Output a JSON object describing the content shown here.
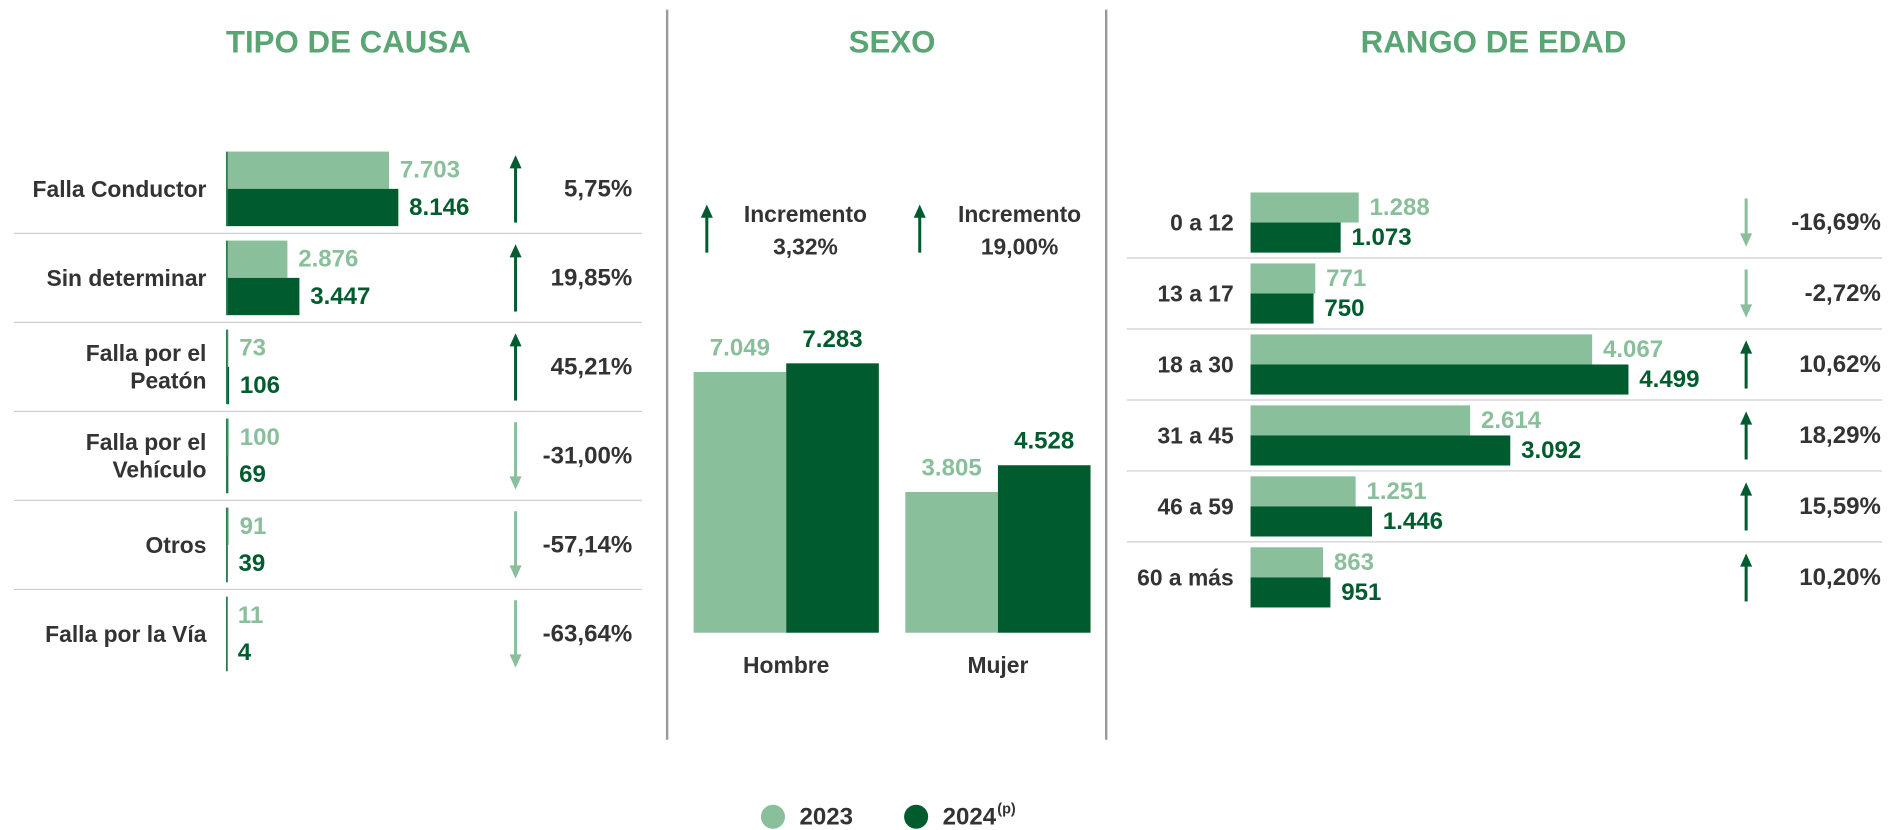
{
  "chart_data": [
    {
      "type": "bar",
      "orientation": "horizontal",
      "title": "TIPO DE CAUSA",
      "categories": [
        "Falla Conductor",
        "Sin determinar",
        "Falla por el\nPeatón",
        "Falla por el\nVehículo",
        "Otros",
        "Falla por la Vía"
      ],
      "series": [
        {
          "name": "2023",
          "color": "#8abf9c",
          "values": [
            7703,
            2876,
            73,
            100,
            91,
            11
          ],
          "value_labels": [
            "7.703",
            "2.876",
            "73",
            "100",
            "91",
            "11"
          ]
        },
        {
          "name": "2024",
          "name_note": "(p)",
          "color": "#005c2e",
          "values": [
            8146,
            3447,
            106,
            69,
            39,
            4
          ],
          "value_labels": [
            "8.146",
            "3.447",
            "106",
            "69",
            "39",
            "4"
          ]
        }
      ],
      "change_values": [
        5.75,
        19.85,
        45.21,
        -31.0,
        -57.14,
        -63.64
      ],
      "change_labels": [
        "5,75%",
        "19,85%",
        "45,21%",
        "-31,00%",
        "-57,14%",
        "-63,64%"
      ],
      "xlim": [
        0,
        10000
      ]
    },
    {
      "type": "bar",
      "orientation": "vertical",
      "title": "SEXO",
      "categories": [
        "Hombre",
        "Mujer"
      ],
      "series": [
        {
          "name": "2023",
          "color": "#8abf9c",
          "values": [
            7049,
            3805
          ],
          "value_labels": [
            "7.049",
            "3.805"
          ]
        },
        {
          "name": "2024",
          "name_note": "(p)",
          "color": "#005c2e",
          "values": [
            7283,
            4528
          ],
          "value_labels": [
            "7.283",
            "4.528"
          ]
        }
      ],
      "annotation": "Incremento",
      "change_values": [
        3.32,
        19.0
      ],
      "change_labels": [
        "3,32%",
        "19,00%"
      ],
      "ylim": [
        0,
        8000
      ]
    },
    {
      "type": "bar",
      "orientation": "horizontal",
      "title": "RANGO DE EDAD",
      "categories": [
        "0 a 12",
        "13 a 17",
        "18 a 30",
        "31 a 45",
        "46 a 59",
        "60 a más"
      ],
      "series": [
        {
          "name": "2023",
          "color": "#8abf9c",
          "values": [
            1288,
            771,
            4067,
            2614,
            1251,
            863
          ],
          "value_labels": [
            "1.288",
            "771",
            "4.067",
            "2.614",
            "1.251",
            "863"
          ]
        },
        {
          "name": "2024",
          "name_note": "(p)",
          "color": "#005c2e",
          "values": [
            1073,
            750,
            4499,
            3092,
            1446,
            951
          ],
          "value_labels": [
            "1.073",
            "750",
            "4.499",
            "3.092",
            "1.446",
            "951"
          ]
        }
      ],
      "change_values": [
        -16.69,
        -2.72,
        10.62,
        18.29,
        15.59,
        10.2
      ],
      "change_labels": [
        "-16,69%",
        "-2,72%",
        "10,62%",
        "18,29%",
        "15,59%",
        "10,20%"
      ],
      "xlim": [
        0,
        6000
      ]
    }
  ]
}
